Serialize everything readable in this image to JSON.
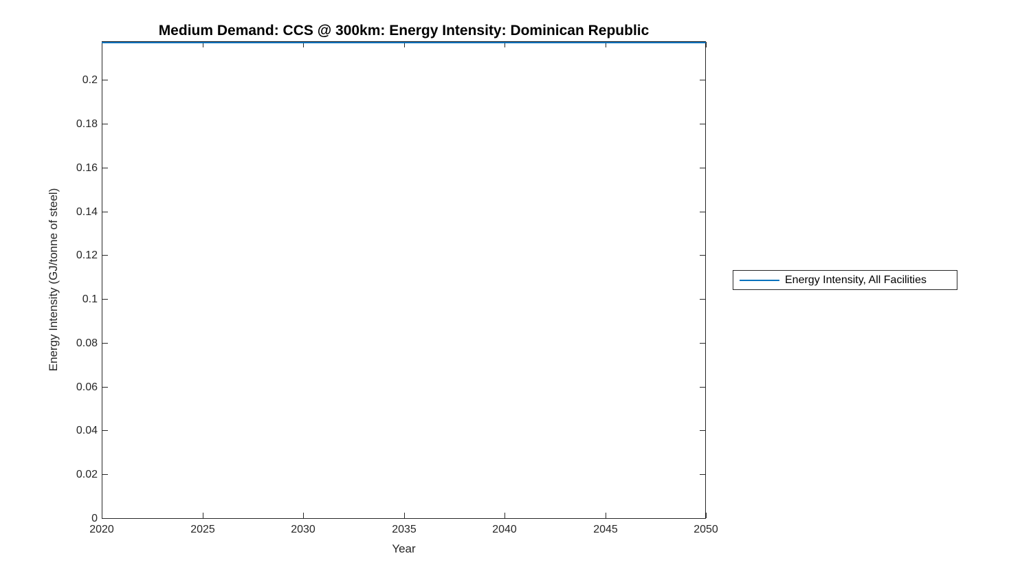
{
  "chart_data": {
    "type": "line",
    "title": "Medium Demand: CCS @ 300km: Energy Intensity: Dominican Republic",
    "xlabel": "Year",
    "ylabel": "Energy Intensity (GJ/tonne of steel)",
    "xlim": [
      2020,
      2050
    ],
    "ylim": [
      0,
      0.218
    ],
    "x_ticks": [
      2020,
      2025,
      2030,
      2035,
      2040,
      2045,
      2050
    ],
    "x_tick_labels": [
      "2020",
      "2025",
      "2030",
      "2035",
      "2040",
      "2045",
      "2050"
    ],
    "y_ticks": [
      0,
      0.02,
      0.04,
      0.06,
      0.08,
      0.1,
      0.12,
      0.14,
      0.16,
      0.18,
      0.2
    ],
    "y_tick_labels": [
      "0",
      "0.02",
      "0.04",
      "0.06",
      "0.08",
      "0.1",
      "0.12",
      "0.14",
      "0.16",
      "0.18",
      "0.2"
    ],
    "grid": false,
    "box": true,
    "tick_direction": "in",
    "legend": {
      "position": "outside-right",
      "border": true,
      "entries": [
        {
          "label": "Energy Intensity, All Facilities",
          "color": "#0072BD"
        }
      ]
    },
    "series": [
      {
        "name": "Energy Intensity, All Facilities",
        "color": "#0072BD",
        "x": [
          2020,
          2050
        ],
        "values": [
          0.218,
          0.218
        ],
        "note": "flat horizontal line drawn at the very top edge of the axes (value equals axis upper limit, ~0.218)"
      }
    ]
  },
  "colors": {
    "line": "#0072BD",
    "axis": "#262626",
    "tick_text": "#262626",
    "title_text": "#000000",
    "legend_text": "#000000",
    "background": "#ffffff"
  }
}
